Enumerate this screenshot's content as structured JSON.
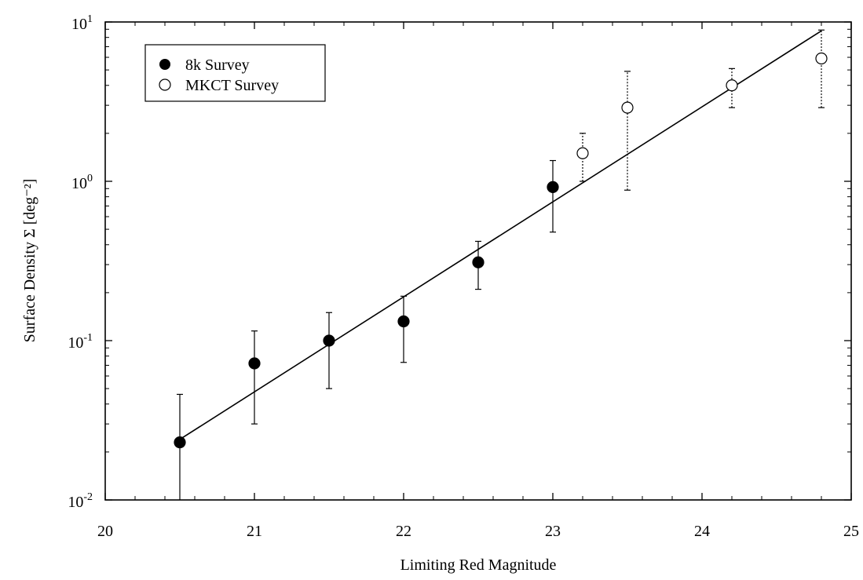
{
  "chart_data": {
    "type": "scatter",
    "xlabel": "Limiting Red Magnitude",
    "ylabel": "Surface Density Σ [deg⁻²]",
    "xlim": [
      20,
      25
    ],
    "ylim": [
      0.01,
      10
    ],
    "y_scale": "log",
    "x_ticks": [
      20,
      21,
      22,
      23,
      24,
      25
    ],
    "x_tick_labels": [
      "20",
      "21",
      "22",
      "23",
      "24",
      "25"
    ],
    "y_ticks": [
      0.01,
      0.1,
      1,
      10
    ],
    "y_tick_labels": [
      {
        "base": "10",
        "exp": "-2"
      },
      {
        "base": "10",
        "exp": "-1"
      },
      {
        "base": "10",
        "exp": "0"
      },
      {
        "base": "10",
        "exp": "1"
      }
    ],
    "legend_position": "top-left",
    "series": [
      {
        "name": "8k Survey",
        "marker": "filled-circle",
        "color": "#000000",
        "points": [
          {
            "x": 20.5,
            "y": 0.023,
            "err_low": 0.0095,
            "err_high": 0.046
          },
          {
            "x": 21.0,
            "y": 0.072,
            "err_low": 0.03,
            "err_high": 0.115
          },
          {
            "x": 21.5,
            "y": 0.1,
            "err_low": 0.05,
            "err_high": 0.15
          },
          {
            "x": 22.0,
            "y": 0.132,
            "err_low": 0.073,
            "err_high": 0.19
          },
          {
            "x": 22.5,
            "y": 0.31,
            "err_low": 0.21,
            "err_high": 0.42
          },
          {
            "x": 23.0,
            "y": 0.92,
            "err_low": 0.48,
            "err_high": 1.35
          }
        ]
      },
      {
        "name": "MKCT Survey",
        "marker": "open-circle",
        "color": "#000000",
        "points": [
          {
            "x": 23.2,
            "y": 1.5,
            "err_low": 1.0,
            "err_high": 2.0
          },
          {
            "x": 23.5,
            "y": 2.9,
            "err_low": 0.88,
            "err_high": 4.9
          },
          {
            "x": 24.2,
            "y": 4.0,
            "err_low": 2.9,
            "err_high": 5.1
          },
          {
            "x": 24.8,
            "y": 5.9,
            "err_low": 2.9,
            "err_high": 8.9
          }
        ]
      }
    ],
    "fit_line": {
      "x": [
        20.5,
        24.8
      ],
      "y": [
        0.024,
        8.8
      ]
    },
    "minor_y_ticks": true,
    "grid": false
  }
}
